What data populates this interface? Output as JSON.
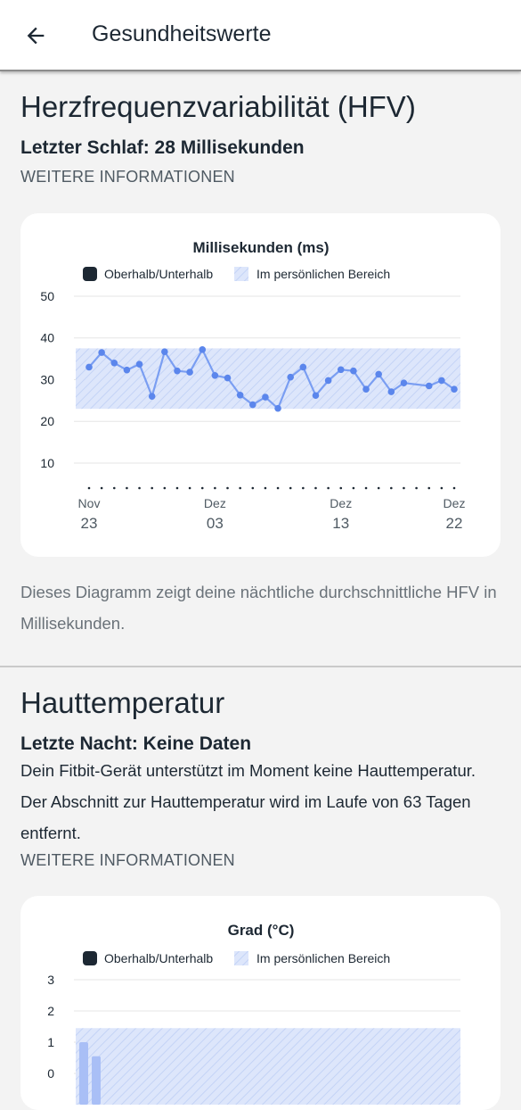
{
  "appbar": {
    "title": "Gesundheitswerte",
    "back_icon": "arrow-left-icon"
  },
  "hrv": {
    "title": "Herzfrequenzvariabilität (HFV)",
    "subtitle": "Letzter Schlaf: 28 Millisekunden",
    "more_link": "WEITERE INFORMATIONEN",
    "description": "Dieses Diagramm zeigt deine nächtliche durchschnittliche HFV in Millisekunden."
  },
  "skin": {
    "title": "Hauttemperatur",
    "subtitle": "Letzte Nacht: Keine Daten",
    "body": "Dein Fitbit-Gerät unterstützt im Moment keine Hauttemperatur. Der Abschnitt zur Hauttemperatur wird im Laufe von 63 Tagen entfernt.",
    "more_link": "WEITERE INFORMATIONEN"
  },
  "colors": {
    "line": "#7a9ef2",
    "dot": "#5b86ec",
    "band": "#dde6fb",
    "band_hatch": "#c4d3f6",
    "legend_dark": "#1d2833",
    "grid": "#e6e6e6"
  },
  "chart_data": [
    {
      "type": "line",
      "title": "Millisekunden (ms)",
      "legend": [
        "Oberhalb/Unterhalb",
        "Im persönlichen Bereich"
      ],
      "legend_position": "top",
      "y_ticks": [
        10,
        20,
        30,
        40,
        50
      ],
      "ylim": [
        4,
        50
      ],
      "grid": true,
      "band": [
        23,
        37.5
      ],
      "x_ticks": [
        {
          "month": "Nov",
          "day": "23",
          "index": 0
        },
        {
          "month": "Dez",
          "day": "03",
          "index": 10
        },
        {
          "month": "Dez",
          "day": "13",
          "index": 20
        },
        {
          "month": "Dez",
          "day": "22",
          "index": 29
        }
      ],
      "x_count": 30,
      "series": [
        {
          "x": [
            0,
            1,
            2,
            3,
            4,
            5,
            6,
            7,
            8,
            9,
            10,
            11,
            12,
            13,
            14,
            15,
            16,
            17,
            18,
            19,
            20,
            21,
            22,
            23,
            24,
            25,
            26,
            27,
            28,
            29
          ],
          "values": [
            33,
            36.5,
            34,
            32.3,
            33.7,
            26,
            36.7,
            32.1,
            31.8,
            37.2,
            31,
            30.4,
            26.3,
            24,
            25.8,
            23.1,
            30.6,
            33,
            26.2,
            29.8,
            32.4,
            32.1,
            27.7,
            31.3,
            27.1,
            29.2,
            null,
            28.5,
            29.8,
            27.7
          ]
        }
      ]
    },
    {
      "type": "bar",
      "title": "Grad (°C)",
      "legend": [
        "Oberhalb/Unterhalb",
        "Im persönlichen Bereich"
      ],
      "legend_position": "top",
      "y_ticks": [
        0,
        1,
        2,
        3
      ],
      "ylim": [
        -1,
        3
      ],
      "grid": true,
      "band": [
        -1,
        1.45
      ],
      "series": [
        {
          "x": [
            0,
            1
          ],
          "values": [
            1,
            0.55
          ]
        }
      ]
    }
  ]
}
